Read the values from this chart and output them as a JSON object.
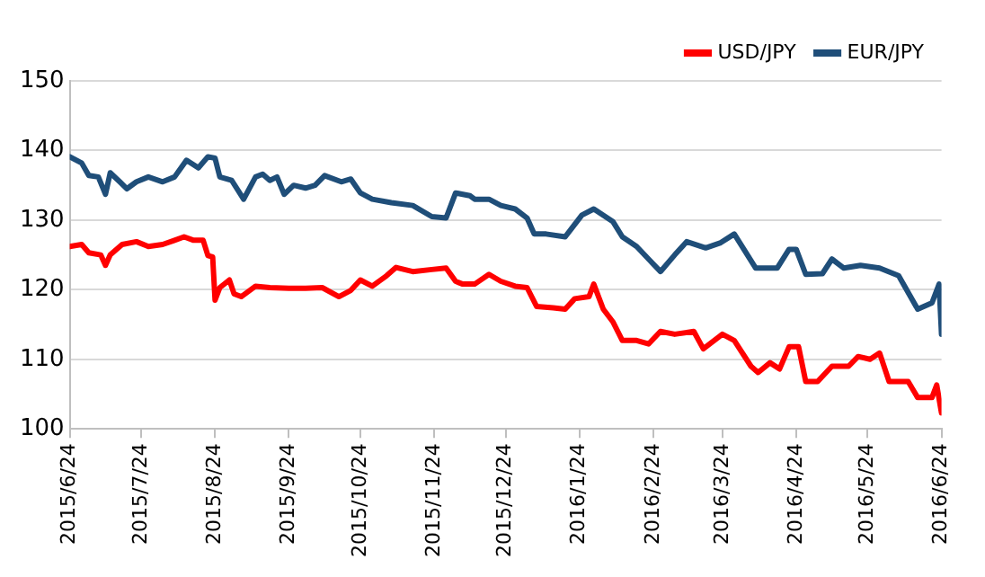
{
  "chart_data": {
    "type": "line",
    "xlim": [
      "2015-06-24",
      "2016-06-24"
    ],
    "xticks": [
      {
        "value": "2015-06-24",
        "label": "2015/6/24"
      },
      {
        "value": "2015-07-24",
        "label": "2015/7/24"
      },
      {
        "value": "2015-08-24",
        "label": "2015/8/24"
      },
      {
        "value": "2015-09-24",
        "label": "2015/9/24"
      },
      {
        "value": "2015-10-24",
        "label": "2015/10/24"
      },
      {
        "value": "2015-11-24",
        "label": "2015/11/24"
      },
      {
        "value": "2015-12-24",
        "label": "2015/12/24"
      },
      {
        "value": "2016-01-24",
        "label": "2016/1/24"
      },
      {
        "value": "2016-02-24",
        "label": "2016/2/24"
      },
      {
        "value": "2016-03-24",
        "label": "2016/3/24"
      },
      {
        "value": "2016-04-24",
        "label": "2016/4/24"
      },
      {
        "value": "2016-05-24",
        "label": "2016/5/24"
      },
      {
        "value": "2016-06-24",
        "label": "2016/6/24"
      }
    ],
    "ylim": [
      100,
      150
    ],
    "yticks": [
      100,
      110,
      120,
      130,
      140,
      150
    ],
    "grid": "y",
    "legend": "top right",
    "marker": "none",
    "line_style": "solid",
    "series": [
      {
        "name": "USD/JPY",
        "color": "#ff0000",
        "x": [
          "2015-06-24",
          "2015-06-29",
          "2015-07-02",
          "2015-07-07",
          "2015-07-09",
          "2015-07-11",
          "2015-07-16",
          "2015-07-22",
          "2015-07-27",
          "2015-08-02",
          "2015-08-07",
          "2015-08-11",
          "2015-08-15",
          "2015-08-19",
          "2015-08-21",
          "2015-08-23",
          "2015-08-24",
          "2015-08-26",
          "2015-08-30",
          "2015-09-01",
          "2015-09-04",
          "2015-09-10",
          "2015-09-16",
          "2015-09-24",
          "2015-10-01",
          "2015-10-08",
          "2015-10-15",
          "2015-10-20",
          "2015-10-24",
          "2015-10-29",
          "2015-11-04",
          "2015-11-08",
          "2015-11-15",
          "2015-11-23",
          "2015-11-29",
          "2015-12-03",
          "2015-12-06",
          "2015-12-11",
          "2015-12-17",
          "2015-12-22",
          "2015-12-28",
          "2016-01-02",
          "2016-01-06",
          "2016-01-13",
          "2016-01-18",
          "2016-01-22",
          "2016-01-28",
          "2016-01-30",
          "2016-02-03",
          "2016-02-07",
          "2016-02-11",
          "2016-02-17",
          "2016-02-22",
          "2016-02-27",
          "2016-03-04",
          "2016-03-12",
          "2016-03-16",
          "2016-03-24",
          "2016-03-29",
          "2016-04-05",
          "2016-04-08",
          "2016-04-13",
          "2016-04-17",
          "2016-04-21",
          "2016-04-25",
          "2016-04-28",
          "2016-05-03",
          "2016-05-09",
          "2016-05-16",
          "2016-05-20",
          "2016-05-25",
          "2016-05-29",
          "2016-06-02",
          "2016-06-10",
          "2016-06-14",
          "2016-06-20",
          "2016-06-22",
          "2016-06-24"
        ],
        "values": [
          126.2,
          126.5,
          125.3,
          125.0,
          123.5,
          125.0,
          126.5,
          126.9,
          126.2,
          126.5,
          127.1,
          127.6,
          127.1,
          127.1,
          124.9,
          124.7,
          118.5,
          120.3,
          121.4,
          119.4,
          119.0,
          120.5,
          120.3,
          120.2,
          120.2,
          120.3,
          119.0,
          119.9,
          121.4,
          120.5,
          122.0,
          123.2,
          122.6,
          122.9,
          123.1,
          121.2,
          120.8,
          120.8,
          122.2,
          121.2,
          120.5,
          120.3,
          117.6,
          117.4,
          117.2,
          118.7,
          119.0,
          120.8,
          117.2,
          115.4,
          112.7,
          112.7,
          112.2,
          114.0,
          113.6,
          114.0,
          111.5,
          113.6,
          112.7,
          109.0,
          108.1,
          109.5,
          108.6,
          111.8,
          111.8,
          106.8,
          106.8,
          109.0,
          109.0,
          110.4,
          110.0,
          110.9,
          106.8,
          106.8,
          104.5,
          104.5,
          106.3,
          102.3
        ]
      },
      {
        "name": "EUR/JPY",
        "color": "#1f4e79",
        "x": [
          "2015-06-24",
          "2015-06-29",
          "2015-07-02",
          "2015-07-06",
          "2015-07-09",
          "2015-07-11",
          "2015-07-15",
          "2015-07-18",
          "2015-07-22",
          "2015-07-27",
          "2015-08-02",
          "2015-08-07",
          "2015-08-12",
          "2015-08-17",
          "2015-08-21",
          "2015-08-24",
          "2015-08-26",
          "2015-08-31",
          "2015-09-05",
          "2015-09-10",
          "2015-09-13",
          "2015-09-16",
          "2015-09-19",
          "2015-09-22",
          "2015-09-26",
          "2015-10-01",
          "2015-10-05",
          "2015-10-09",
          "2015-10-16",
          "2015-10-20",
          "2015-10-24",
          "2015-10-29",
          "2015-11-06",
          "2015-11-15",
          "2015-11-23",
          "2015-11-29",
          "2015-12-03",
          "2015-12-09",
          "2015-12-11",
          "2015-12-17",
          "2015-12-22",
          "2015-12-28",
          "2016-01-02",
          "2016-01-05",
          "2016-01-10",
          "2016-01-18",
          "2016-01-25",
          "2016-01-30",
          "2016-02-07",
          "2016-02-11",
          "2016-02-17",
          "2016-02-22",
          "2016-02-27",
          "2016-03-04",
          "2016-03-09",
          "2016-03-17",
          "2016-03-23",
          "2016-03-29",
          "2016-04-07",
          "2016-04-16",
          "2016-04-21",
          "2016-04-24",
          "2016-04-28",
          "2016-05-05",
          "2016-05-09",
          "2016-05-14",
          "2016-05-21",
          "2016-05-29",
          "2016-06-06",
          "2016-06-14",
          "2016-06-20",
          "2016-06-23",
          "2016-06-24"
        ],
        "values": [
          139.1,
          138.2,
          136.4,
          136.2,
          133.7,
          136.8,
          135.5,
          134.5,
          135.5,
          136.2,
          135.5,
          136.2,
          138.6,
          137.5,
          139.1,
          138.9,
          136.2,
          135.7,
          133.0,
          136.2,
          136.6,
          135.7,
          136.2,
          133.7,
          135.0,
          134.6,
          135.0,
          136.4,
          135.5,
          135.9,
          133.9,
          133.0,
          132.5,
          132.1,
          130.5,
          130.3,
          133.9,
          133.5,
          133.0,
          133.0,
          132.1,
          131.6,
          130.3,
          128.0,
          128.0,
          127.6,
          130.7,
          131.6,
          129.8,
          127.6,
          126.2,
          124.4,
          122.6,
          125.0,
          126.9,
          126.0,
          126.7,
          128.0,
          123.1,
          123.1,
          125.8,
          125.8,
          122.2,
          122.3,
          124.4,
          123.1,
          123.5,
          123.1,
          122.0,
          117.2,
          118.1,
          120.8,
          113.6
        ]
      }
    ]
  }
}
